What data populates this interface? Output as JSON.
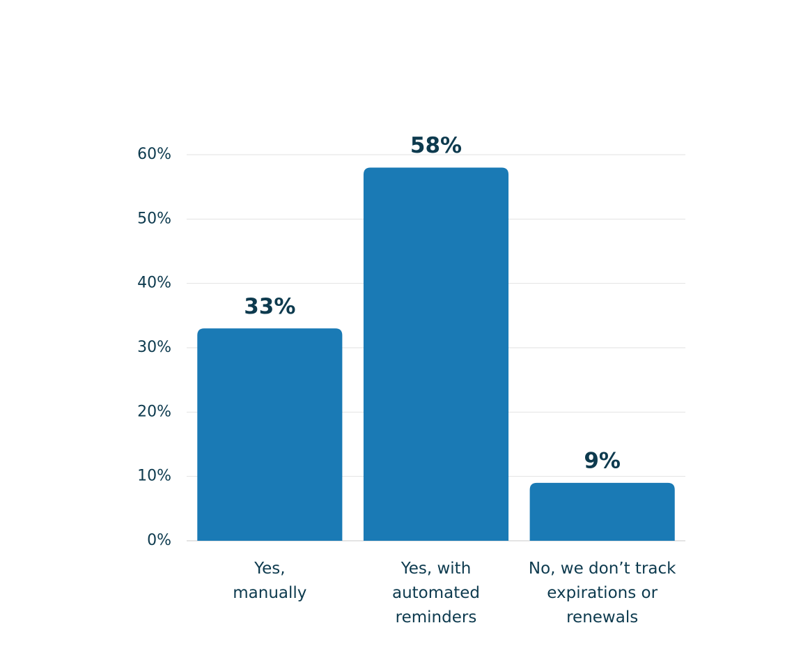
{
  "chart_data": {
    "type": "bar",
    "categories": [
      "Yes,\nmanually",
      "Yes, with\nautomated\nreminders",
      "No, we don’t track\nexpirations or\nrenewals"
    ],
    "values": [
      33,
      58,
      9
    ],
    "value_labels": [
      "33%",
      "58%",
      "9%"
    ],
    "color": "#1a7ab5",
    "ylim": [
      0,
      60
    ],
    "yticks": [
      {
        "value": 0,
        "label": "0%"
      },
      {
        "value": 10,
        "label": "10%"
      },
      {
        "value": 20,
        "label": "20%"
      },
      {
        "value": 30,
        "label": "30%"
      },
      {
        "value": 40,
        "label": "40%"
      },
      {
        "value": 50,
        "label": "50%"
      },
      {
        "value": 60,
        "label": "60%"
      }
    ],
    "grid": true
  }
}
